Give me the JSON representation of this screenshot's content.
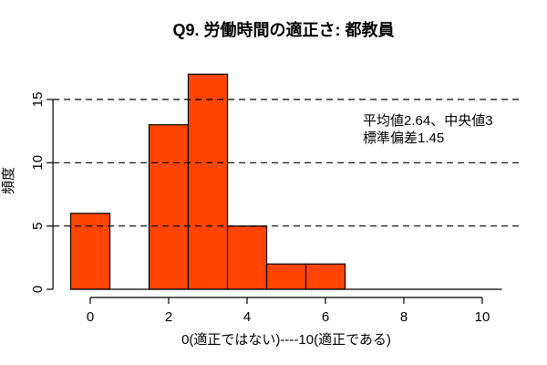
{
  "chart_data": {
    "type": "bar",
    "subtype": "histogram",
    "title": "Q9. 労働時間の適正さ: 都教員",
    "xlabel": "0(適正ではない)----10(適正である)",
    "ylabel": "頻度",
    "bin_width": 1,
    "bin_centers": [
      0,
      1,
      2,
      3,
      4,
      5,
      6,
      7,
      8,
      9,
      10
    ],
    "counts": [
      6,
      0,
      13,
      17,
      5,
      2,
      2,
      0,
      0,
      0,
      0
    ],
    "x_ticks": [
      0,
      2,
      4,
      6,
      8,
      10
    ],
    "y_ticks": [
      0,
      5,
      10,
      15
    ],
    "xlim": [
      -0.95,
      10.95
    ],
    "ylim": [
      0,
      17
    ],
    "grid": {
      "y_values": [
        5,
        10,
        15
      ],
      "style": "dashed",
      "color": "#000000"
    },
    "baseline": {
      "x_start": -0.5,
      "x_end": 10.5,
      "y": 0
    },
    "colors": {
      "bar_fill": "#FF4500",
      "bar_stroke": "#000000",
      "axis": "#000000",
      "text": "#000000",
      "background": "#FFFFFF"
    },
    "legend": "none",
    "annotation": {
      "line1": "平均値2.64、中央値3",
      "line2": "標準偏差1.45"
    },
    "stats": {
      "mean": 2.64,
      "median": 3,
      "sd": 1.45
    }
  }
}
